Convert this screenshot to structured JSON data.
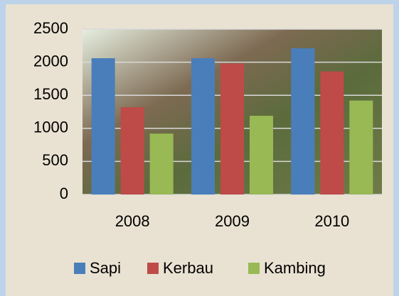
{
  "chart_data": {
    "type": "bar",
    "categories": [
      "2008",
      "2009",
      "2010"
    ],
    "series": [
      {
        "name": "Sapi",
        "color": "#4a7ebb",
        "values": [
          2060,
          2060,
          2210
        ]
      },
      {
        "name": "Kerbau",
        "color": "#be4b48",
        "values": [
          1320,
          1980,
          1860
        ]
      },
      {
        "name": "Kambing",
        "color": "#98b954",
        "values": [
          920,
          1190,
          1420
        ]
      }
    ],
    "ylim": [
      0,
      2500
    ],
    "yticks": [
      0,
      500,
      1000,
      1500,
      2000,
      2500
    ],
    "grid": true,
    "legend": "bottom"
  }
}
